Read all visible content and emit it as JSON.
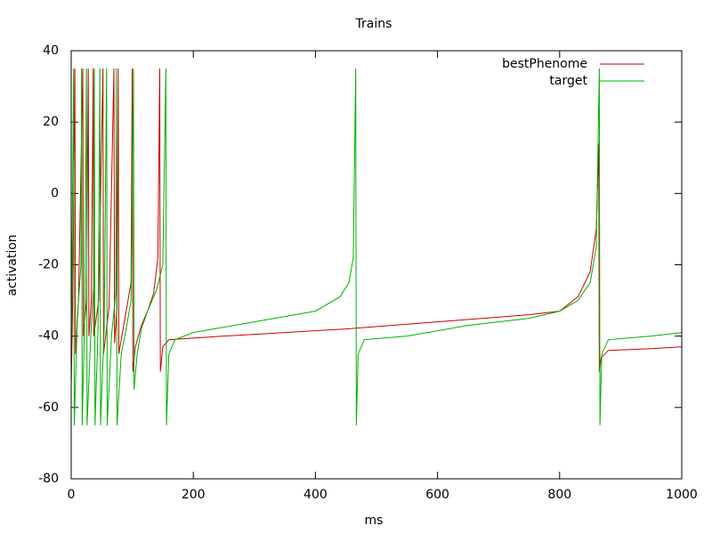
{
  "chart_data": {
    "type": "line",
    "title": "Trains",
    "x_label": "ms",
    "y_label": "activation",
    "xlim": [
      0,
      1000
    ],
    "xticks": [
      0,
      200,
      400,
      600,
      800,
      1000
    ],
    "ylim": [
      -80,
      40
    ],
    "yticks": [
      -80,
      -60,
      -40,
      -20,
      0,
      20,
      40
    ],
    "legend": "top-right",
    "grid": false,
    "series": [
      {
        "name": "bestPhenome",
        "color": "#cc0000",
        "x": [
          0,
          2,
          6,
          7,
          12,
          19,
          20,
          25,
          28,
          29,
          33,
          36,
          37,
          45,
          52,
          53,
          62,
          70,
          71,
          75,
          77,
          78,
          88,
          98,
          100,
          101,
          105,
          115,
          125,
          135,
          142,
          145,
          146,
          150,
          160,
          250,
          450,
          600,
          750,
          800,
          830,
          850,
          860,
          864,
          865,
          868,
          880,
          950,
          1000
        ],
        "values": [
          -54,
          -35,
          35,
          -45,
          -30,
          35,
          -40,
          -30,
          35,
          -40,
          -30,
          35,
          -40,
          -30,
          35,
          -45,
          -32,
          35,
          -42,
          -32,
          35,
          -45,
          -35,
          -25,
          35,
          -50,
          -43,
          -37,
          -33,
          -28,
          -18,
          35,
          -50,
          -43,
          -41,
          -40,
          -38,
          -36,
          -34,
          -33,
          -29,
          -22,
          -10,
          14,
          -50,
          -46,
          -44,
          -43.5,
          -43
        ]
      },
      {
        "name": "target",
        "color": "#00b000",
        "x": [
          0,
          4,
          5,
          10,
          16,
          17,
          18,
          22,
          25,
          26,
          32,
          37,
          38,
          39,
          44,
          47,
          48,
          54,
          58,
          59,
          66,
          73,
          74,
          75,
          82,
          90,
          98,
          102,
          103,
          108,
          115,
          125,
          140,
          150,
          155,
          156,
          160,
          170,
          200,
          300,
          400,
          440,
          455,
          462,
          466,
          467,
          470,
          480,
          550,
          650,
          750,
          800,
          830,
          850,
          860,
          865,
          866,
          869,
          880,
          950,
          1000
        ],
        "values": [
          -45,
          35,
          -65,
          -35,
          -20,
          35,
          -65,
          -35,
          35,
          -65,
          -40,
          -25,
          35,
          -65,
          -38,
          35,
          -65,
          -38,
          35,
          -65,
          -40,
          -28,
          35,
          -65,
          -45,
          -38,
          -30,
          35,
          -55,
          -45,
          -38,
          -33,
          -27,
          -20,
          35,
          -65,
          -45,
          -41,
          -39,
          -36,
          -33,
          -29,
          -25,
          -18,
          35,
          -65,
          -45,
          -41,
          -40,
          -37,
          -35,
          -33,
          -30,
          -25,
          -15,
          35,
          -65,
          -45,
          -41,
          -40,
          -39
        ]
      }
    ]
  }
}
